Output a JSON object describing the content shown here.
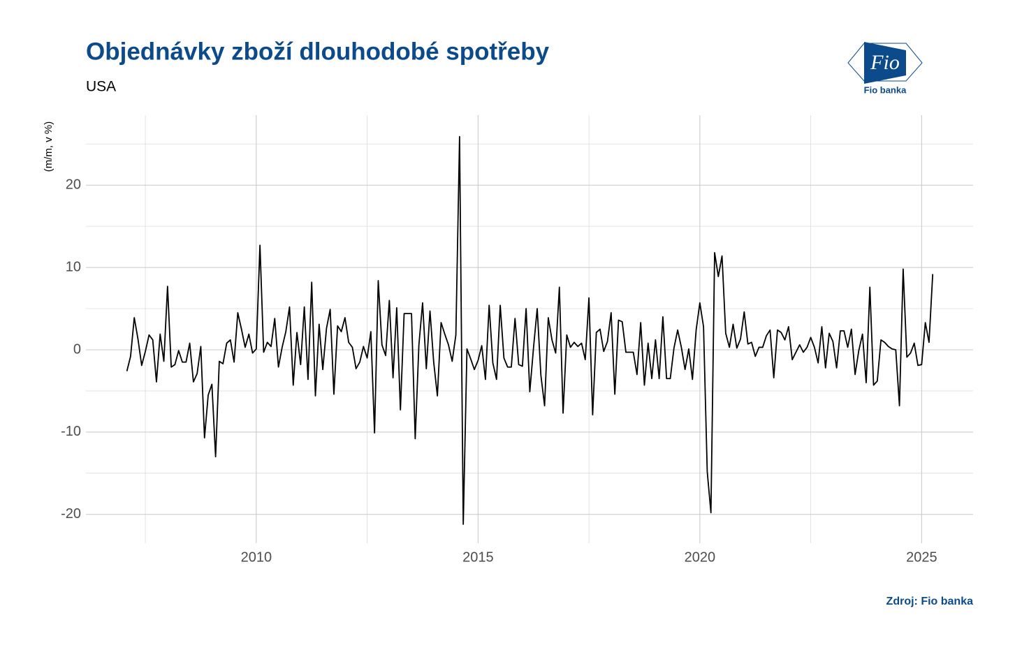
{
  "chart_data": {
    "type": "line",
    "title": "Objednávky zboží dlouhodobé spotřeby",
    "subtitle": "USA",
    "y_label": "(m/m, v %)",
    "source": "Zdroj: Fio banka",
    "logo": {
      "mark": "Fio",
      "name": "Fio banka"
    },
    "color": "#000000",
    "grid": true,
    "xlim": [
      2006.16,
      2026.16
    ],
    "ylim": [
      -23.5,
      28.5
    ],
    "xticks": [
      2010,
      2015,
      2020,
      2025
    ],
    "x_minor_ticks": [
      2007.5,
      2012.5,
      2017.5,
      2022.5
    ],
    "yticks": [
      -20,
      -10,
      0,
      10,
      20
    ],
    "y_minor_ticks": [
      -15,
      -5,
      5,
      15,
      25
    ],
    "x": [
      "2007-02",
      "2007-03",
      "2007-04",
      "2007-05",
      "2007-06",
      "2007-07",
      "2007-08",
      "2007-09",
      "2007-10",
      "2007-11",
      "2007-12",
      "2008-01",
      "2008-02",
      "2008-03",
      "2008-04",
      "2008-05",
      "2008-06",
      "2008-07",
      "2008-08",
      "2008-09",
      "2008-10",
      "2008-11",
      "2008-12",
      "2009-01",
      "2009-02",
      "2009-03",
      "2009-04",
      "2009-05",
      "2009-06",
      "2009-07",
      "2009-08",
      "2009-09",
      "2009-10",
      "2009-11",
      "2009-12",
      "2010-01",
      "2010-02",
      "2010-03",
      "2010-04",
      "2010-05",
      "2010-06",
      "2010-07",
      "2010-08",
      "2010-09",
      "2010-10",
      "2010-11",
      "2010-12",
      "2011-01",
      "2011-02",
      "2011-03",
      "2011-04",
      "2011-05",
      "2011-06",
      "2011-07",
      "2011-08",
      "2011-09",
      "2011-10",
      "2011-11",
      "2011-12",
      "2012-01",
      "2012-02",
      "2012-03",
      "2012-04",
      "2012-05",
      "2012-06",
      "2012-07",
      "2012-08",
      "2012-09",
      "2012-10",
      "2012-11",
      "2012-12",
      "2013-01",
      "2013-02",
      "2013-03",
      "2013-04",
      "2013-05",
      "2013-06",
      "2013-07",
      "2013-08",
      "2013-09",
      "2013-10",
      "2013-11",
      "2013-12",
      "2014-01",
      "2014-02",
      "2014-03",
      "2014-04",
      "2014-05",
      "2014-06",
      "2014-07",
      "2014-08",
      "2014-09",
      "2014-10",
      "2014-11",
      "2014-12",
      "2015-01",
      "2015-02",
      "2015-03",
      "2015-04",
      "2015-05",
      "2015-06",
      "2015-07",
      "2015-08",
      "2015-09",
      "2015-10",
      "2015-11",
      "2015-12",
      "2016-01",
      "2016-02",
      "2016-03",
      "2016-04",
      "2016-05",
      "2016-06",
      "2016-07",
      "2016-08",
      "2016-09",
      "2016-10",
      "2016-11",
      "2016-12",
      "2017-01",
      "2017-02",
      "2017-03",
      "2017-04",
      "2017-05",
      "2017-06",
      "2017-07",
      "2017-08",
      "2017-09",
      "2017-10",
      "2017-11",
      "2017-12",
      "2018-01",
      "2018-02",
      "2018-03",
      "2018-04",
      "2018-05",
      "2018-06",
      "2018-07",
      "2018-08",
      "2018-09",
      "2018-10",
      "2018-11",
      "2018-12",
      "2019-01",
      "2019-02",
      "2019-03",
      "2019-04",
      "2019-05",
      "2019-06",
      "2019-07",
      "2019-08",
      "2019-09",
      "2019-10",
      "2019-11",
      "2019-12",
      "2020-01",
      "2020-02",
      "2020-03",
      "2020-04",
      "2020-05",
      "2020-06",
      "2020-07",
      "2020-08",
      "2020-09",
      "2020-10",
      "2020-11",
      "2020-12",
      "2021-01",
      "2021-02",
      "2021-03",
      "2021-04",
      "2021-05",
      "2021-06",
      "2021-07",
      "2021-08",
      "2021-09",
      "2021-10",
      "2021-11",
      "2021-12",
      "2022-01",
      "2022-02",
      "2022-03",
      "2022-04",
      "2022-05",
      "2022-06",
      "2022-07",
      "2022-08",
      "2022-09",
      "2022-10",
      "2022-11",
      "2022-12",
      "2023-01",
      "2023-02",
      "2023-03",
      "2023-04",
      "2023-05",
      "2023-06",
      "2023-07",
      "2023-08",
      "2023-09",
      "2023-10",
      "2023-11",
      "2023-12",
      "2024-01",
      "2024-02",
      "2024-03",
      "2024-04",
      "2024-05",
      "2024-06",
      "2024-07",
      "2024-08",
      "2024-09",
      "2024-10",
      "2024-11",
      "2024-12",
      "2025-01",
      "2025-02",
      "2025-03",
      "2025-04"
    ],
    "values": [
      -2.6,
      -0.8,
      3.9,
      1.3,
      -1.9,
      -0.2,
      1.8,
      1.2,
      -3.9,
      1.9,
      -1.4,
      7.7,
      -2.1,
      -1.8,
      -0.1,
      -1.5,
      -1.5,
      0.8,
      -3.9,
      -2.9,
      0.4,
      -10.7,
      -5.5,
      -4.2,
      -13,
      -1.4,
      -1.7,
      0.8,
      1.2,
      -1.5,
      4.5,
      2.5,
      0.3,
      1.9,
      -0.4,
      0.1,
      12.7,
      -0.3,
      0.9,
      0.4,
      3.8,
      -2.1,
      0.3,
      2.2,
      5.2,
      -4.3,
      2.1,
      -1.8,
      5.2,
      -3.6,
      8.2,
      -5.6,
      3.1,
      -2.4,
      2.6,
      4.9,
      -5.4,
      2.9,
      2.2,
      3.9,
      0.9,
      0.3,
      -2.3,
      -1.5,
      0.4,
      -1.0,
      2.2,
      -10.1,
      8.4,
      0.6,
      -0.7,
      6.0,
      -3.4,
      5.1,
      -7.3,
      4.4,
      4.4,
      4.4,
      -10.8,
      0.6,
      5.7,
      -2.3,
      4.7,
      -1.5,
      -5.6,
      3.3,
      1.9,
      0.6,
      -1.4,
      1.8,
      25.9,
      -21.2,
      0.1,
      -1.1,
      -2.4,
      -1.3,
      0.5,
      -3.6,
      5.4,
      -1.6,
      -3.6,
      5.4,
      -1.0,
      -2.1,
      -2.1,
      3.8,
      -1.8,
      -2.0,
      5.0,
      -5.1,
      0.2,
      5.0,
      -3.1,
      -6.8,
      3.9,
      1.2,
      -0.4,
      7.6,
      -7.7,
      1.8,
      0.3,
      0.9,
      0.4,
      0.8,
      -1.2,
      6.3,
      -7.9,
      2.1,
      2.5,
      -0.2,
      1.0,
      4.5,
      -5.4,
      3.6,
      3.4,
      -0.3,
      -0.3,
      -0.3,
      -3.0,
      3.3,
      -4.3,
      0.8,
      -3.5,
      1.2,
      -3.5,
      4.0,
      -3.5,
      -3.5,
      0.2,
      2.4,
      0.3,
      -2.4,
      0.1,
      -3.6,
      2.4,
      5.7,
      2.8,
      -14.8,
      -19.8,
      11.8,
      8.9,
      11.4,
      2.0,
      0.3,
      3.1,
      0.2,
      1.3,
      4.6,
      0.7,
      0.9,
      -0.8,
      0.3,
      0.3,
      1.7,
      2.4,
      -3.4,
      2.4,
      2.1,
      1.2,
      2.8,
      -1.2,
      -0.3,
      0.6,
      -0.3,
      0.3,
      1.5,
      0.3,
      -1.6,
      2.8,
      -2.2,
      2.0,
      1.0,
      -2.2,
      2.3,
      2.3,
      0.3,
      2.5,
      -3.0,
      -0.1,
      1.9,
      -4.0,
      7.6,
      -4.3,
      -3.8,
      1.2,
      0.9,
      0.4,
      0.1,
      0.0,
      -6.8,
      9.8,
      -0.9,
      -0.4,
      0.8,
      -1.9,
      -1.8,
      3.3,
      0.9,
      9.2
    ]
  }
}
